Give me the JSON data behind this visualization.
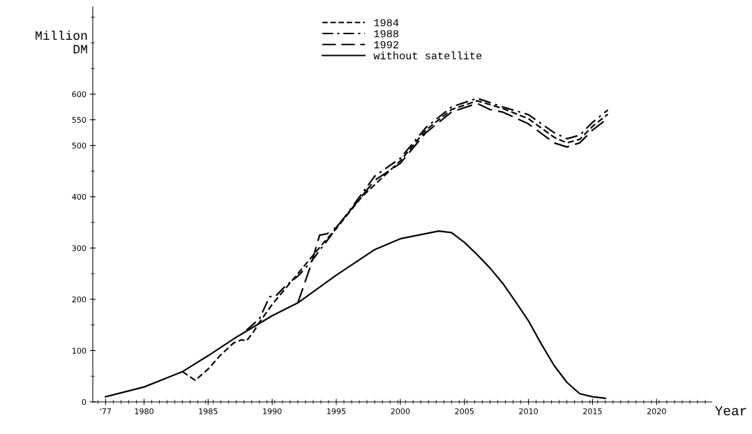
{
  "chart_data": {
    "type": "line",
    "xlabel": "Year",
    "ylabel": "Million\nDM",
    "xlim": [
      1976,
      2024.3
    ],
    "ylim": [
      0,
      770
    ],
    "xticks": [
      {
        "value": 1977,
        "label": "'77"
      },
      1980,
      1985,
      1990,
      1995,
      2000,
      2005,
      2010,
      2015,
      2020
    ],
    "yticks": [
      0,
      100,
      200,
      300,
      400,
      500,
      550,
      600
    ],
    "grid": false,
    "legend": "top",
    "marker": "none",
    "series": [
      {
        "name": "1984",
        "color": "#000000",
        "line_style": "dashed",
        "x": [
          1983,
          1984,
          1985,
          1986,
          1987,
          1987.6,
          1988,
          1988.5,
          1989,
          1990,
          1991,
          1992,
          1993,
          1994,
          1995,
          1997,
          2000,
          2002,
          2004,
          2006,
          2008,
          2010,
          2012,
          2013,
          2014,
          2015,
          2016.2
        ],
        "values": [
          59,
          42,
          64,
          92,
          115,
          121,
          119,
          135,
          155,
          190,
          220,
          250,
          280,
          310,
          338,
          400,
          470,
          530,
          570,
          587,
          572,
          552,
          516,
          505,
          512,
          537,
          561
        ]
      },
      {
        "name": "1988",
        "color": "#000000",
        "line_style": "dashdot",
        "x": [
          1988,
          1989,
          1989.8,
          1990.3,
          1991,
          1992,
          1993,
          1994,
          1995,
          1998,
          2000,
          2002,
          2004,
          2006,
          2008,
          2010,
          2012,
          2013,
          2014,
          2015,
          2016.2
        ],
        "values": [
          140,
          162,
          205,
          207,
          225,
          245,
          272,
          305,
          338,
          440,
          475,
          535,
          575,
          592,
          575,
          560,
          525,
          513,
          520,
          545,
          569
        ]
      },
      {
        "name": "1992",
        "color": "#000000",
        "line_style": "longdash",
        "x": [
          1992,
          1993,
          1993.7,
          1994.3,
          1995,
          1998,
          2000,
          2002,
          2004,
          2006,
          2007,
          2008,
          2010,
          2012,
          2013,
          2014,
          2015,
          2016.2
        ],
        "values": [
          193,
          265,
          325,
          328,
          340,
          432,
          465,
          525,
          565,
          582,
          570,
          565,
          542,
          505,
          497,
          505,
          530,
          553
        ]
      },
      {
        "name": "without satellite",
        "color": "#000000",
        "line_style": "solid",
        "x": [
          1977,
          1980,
          1983,
          1985,
          1987,
          1990,
          1992,
          1995,
          1998,
          2000,
          2003,
          2004,
          2005,
          2006,
          2007,
          2008,
          2009,
          2010,
          2011,
          2012,
          2013,
          2014,
          2015,
          2016
        ],
        "values": [
          10,
          29,
          59,
          90,
          123,
          168,
          193,
          247,
          297,
          318,
          333,
          330,
          311,
          287,
          261,
          231,
          195,
          158,
          113,
          71,
          38,
          16,
          10,
          7
        ]
      }
    ]
  }
}
